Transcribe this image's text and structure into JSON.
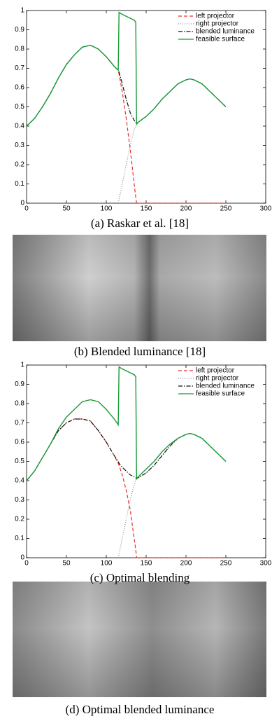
{
  "chart_data": [
    {
      "type": "line",
      "caption": "(a) Raskar et al. [18]",
      "legend": "upper right",
      "grid": false,
      "xlim": [
        0,
        300
      ],
      "xticks": [
        0,
        50,
        100,
        150,
        200,
        250,
        300
      ],
      "ylim": [
        0,
        1
      ],
      "yticks": [
        0,
        0.1,
        0.2,
        0.3,
        0.4,
        0.5,
        0.6,
        0.7,
        0.8,
        0.9,
        1
      ],
      "x": [
        0,
        10,
        20,
        30,
        40,
        50,
        60,
        70,
        80,
        90,
        100,
        110,
        115,
        116,
        120,
        125,
        130,
        135,
        137,
        138,
        140,
        150,
        160,
        170,
        180,
        190,
        200,
        205,
        210,
        220,
        230,
        240,
        250
      ],
      "series": [
        {
          "name": "left projector",
          "color": "#e8302a",
          "dash": "dashed",
          "values": [
            0.4,
            0.44,
            0.5,
            0.57,
            0.65,
            0.72,
            0.77,
            0.81,
            0.82,
            0.8,
            0.76,
            0.71,
            0.69,
            0.67,
            0.58,
            0.44,
            0.28,
            0.1,
            0.03,
            0,
            0,
            0,
            0,
            0,
            0,
            0,
            0,
            0,
            0,
            0,
            0,
            0,
            0
          ]
        },
        {
          "name": "right projector",
          "color": "#8a8a9a",
          "dash": "dotted",
          "values": [
            null,
            null,
            null,
            null,
            null,
            null,
            null,
            null,
            null,
            null,
            null,
            null,
            0,
            0.02,
            0.1,
            0.2,
            0.3,
            0.38,
            0.4,
            0.41,
            0.42,
            0.45,
            0.49,
            0.54,
            0.58,
            0.62,
            0.64,
            0.645,
            0.64,
            0.62,
            0.58,
            0.54,
            0.5
          ]
        },
        {
          "name": "blended luminance",
          "color": "#111111",
          "dash": "dashdot",
          "values": [
            0.4,
            0.44,
            0.5,
            0.57,
            0.65,
            0.72,
            0.77,
            0.81,
            0.82,
            0.8,
            0.76,
            0.71,
            0.69,
            0.68,
            0.62,
            0.54,
            0.47,
            0.43,
            0.42,
            0.41,
            0.42,
            0.45,
            0.49,
            0.54,
            0.58,
            0.62,
            0.64,
            0.645,
            0.64,
            0.62,
            0.58,
            0.54,
            0.5
          ]
        },
        {
          "name": "feasible surface",
          "color": "#1a9a3a",
          "dash": "solid",
          "values": [
            0.4,
            0.44,
            0.5,
            0.57,
            0.65,
            0.72,
            0.77,
            0.81,
            0.82,
            0.8,
            0.76,
            0.71,
            0.69,
            0.99,
            0.98,
            0.97,
            0.96,
            0.95,
            0.94,
            0.41,
            0.42,
            0.45,
            0.49,
            0.54,
            0.58,
            0.62,
            0.64,
            0.645,
            0.64,
            0.62,
            0.58,
            0.54,
            0.5
          ]
        }
      ]
    },
    {
      "type": "line",
      "caption": "(c) Optimal blending",
      "legend": "upper right",
      "grid": false,
      "xlim": [
        0,
        300
      ],
      "xticks": [
        0,
        50,
        100,
        150,
        200,
        250,
        300
      ],
      "ylim": [
        0,
        1
      ],
      "yticks": [
        0,
        0.1,
        0.2,
        0.3,
        0.4,
        0.5,
        0.6,
        0.7,
        0.8,
        0.9,
        1
      ],
      "x": [
        0,
        10,
        20,
        30,
        40,
        50,
        60,
        70,
        80,
        90,
        100,
        110,
        115,
        116,
        120,
        125,
        130,
        135,
        137,
        138,
        140,
        150,
        160,
        170,
        180,
        190,
        200,
        205,
        210,
        220,
        230,
        240,
        250
      ],
      "series": [
        {
          "name": "left projector",
          "color": "#e8302a",
          "dash": "dashed",
          "values": [
            0.4,
            0.45,
            0.52,
            0.59,
            0.66,
            0.7,
            0.72,
            0.72,
            0.71,
            0.66,
            0.6,
            0.53,
            0.49,
            0.48,
            0.43,
            0.35,
            0.25,
            0.1,
            0.04,
            0,
            0,
            0,
            0,
            0,
            0,
            0,
            0,
            0,
            0,
            0,
            0,
            0,
            0
          ]
        },
        {
          "name": "right projector",
          "color": "#8a8a9a",
          "dash": "dotted",
          "values": [
            null,
            null,
            null,
            null,
            null,
            null,
            null,
            null,
            null,
            null,
            null,
            null,
            0,
            0.02,
            0.1,
            0.2,
            0.3,
            0.38,
            0.4,
            0.41,
            0.415,
            0.44,
            0.48,
            0.53,
            0.58,
            0.62,
            0.64,
            0.645,
            0.64,
            0.62,
            0.58,
            0.54,
            0.5
          ]
        },
        {
          "name": "blended luminance",
          "color": "#111111",
          "dash": "dashdot",
          "values": [
            0.4,
            0.45,
            0.52,
            0.59,
            0.66,
            0.7,
            0.72,
            0.72,
            0.71,
            0.66,
            0.6,
            0.53,
            0.5,
            0.49,
            0.47,
            0.45,
            0.43,
            0.42,
            0.415,
            0.41,
            0.415,
            0.44,
            0.48,
            0.53,
            0.58,
            0.62,
            0.64,
            0.645,
            0.64,
            0.62,
            0.58,
            0.54,
            0.5
          ]
        },
        {
          "name": "feasible surface",
          "color": "#1a9a3a",
          "dash": "solid",
          "values": [
            0.4,
            0.45,
            0.52,
            0.59,
            0.67,
            0.73,
            0.77,
            0.81,
            0.82,
            0.81,
            0.77,
            0.72,
            0.69,
            0.99,
            0.98,
            0.97,
            0.96,
            0.95,
            0.94,
            0.41,
            0.42,
            0.46,
            0.5,
            0.55,
            0.59,
            0.62,
            0.64,
            0.645,
            0.64,
            0.62,
            0.58,
            0.54,
            0.5
          ]
        }
      ]
    }
  ],
  "figures": [
    {
      "caption": "(b) Blended luminance [18]"
    },
    {
      "caption": "(d) Optimal blended luminance"
    }
  ]
}
